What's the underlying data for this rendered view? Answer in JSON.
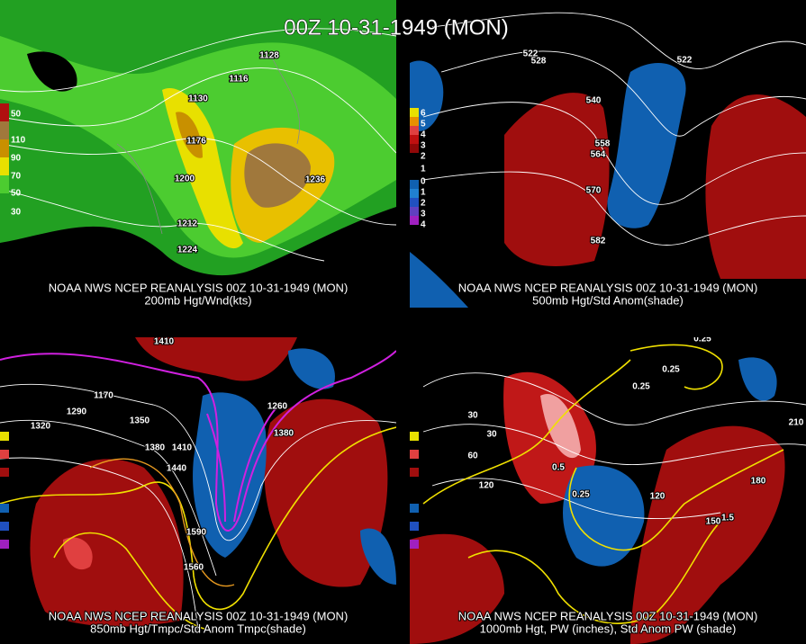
{
  "title": "00Z 10-31-1949 (MON)",
  "panels": [
    {
      "caption": [
        "NOAA NWS NCEP REANALYSIS 00Z 10-31-1949 (MON)",
        "200mb Hgt/Wnd(kts)"
      ],
      "legend": [
        "50",
        "110",
        "90",
        "70",
        "50",
        "30"
      ],
      "labels": [
        "1128",
        "1116",
        "1130",
        "1176",
        "1200",
        "1236",
        "1212",
        "1224"
      ]
    },
    {
      "caption": [
        "NOAA NWS NCEP REANALYSIS 00Z 10-31-1949 (MON)",
        "500mb Hgt/Std Anom(shade)"
      ],
      "legend": [
        "6",
        "5",
        "4",
        "3",
        "2",
        "1",
        "0",
        "1",
        "2",
        "3",
        "4"
      ],
      "labels": [
        "522",
        "528",
        "540",
        "558",
        "564",
        "570",
        "582",
        "522"
      ]
    },
    {
      "caption": [
        "NOAA NWS NCEP REANALYSIS 00Z 10-31-1949 (MON)",
        "850mb Hgt/Tmpc/Std Anom Tmpc(shade)"
      ],
      "labels": [
        "1410",
        "1290",
        "1170",
        "1320",
        "1350",
        "1380",
        "1410",
        "1440",
        "1260",
        "1380",
        "1590",
        "1560"
      ]
    },
    {
      "caption": [
        "NOAA NWS NCEP REANALYSIS 00Z 10-31-1949 (MON)",
        "1000mb Hgt, PW (inches), Std Anom PW (shade)"
      ],
      "labels": [
        "0.25",
        "0.25",
        "0.25",
        "30",
        "30",
        "60",
        "120",
        "120",
        "150",
        "180",
        "210",
        "0.5",
        "0.25",
        "1.5"
      ]
    }
  ]
}
